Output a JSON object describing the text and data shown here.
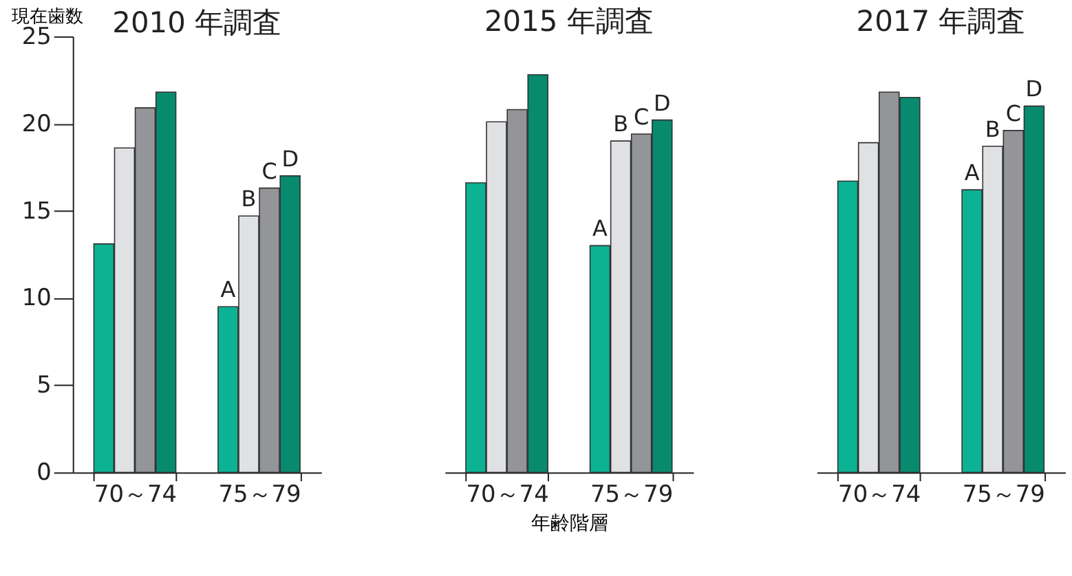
{
  "chart_data": [
    {
      "type": "bar",
      "title": "2010 年調査",
      "ylabel": "現在歯数",
      "categories": [
        "70～74",
        "75～79"
      ],
      "ylim": [
        0,
        25
      ],
      "yticks": [
        0,
        5,
        10,
        15,
        20,
        25
      ],
      "legend": false,
      "grid": false,
      "series": [
        {
          "name": "A",
          "color": "#0bb394",
          "values": [
            13.1,
            9.5
          ]
        },
        {
          "name": "B",
          "color": "#e0e1e3",
          "values": [
            18.6,
            14.7
          ]
        },
        {
          "name": "C",
          "color": "#939598",
          "values": [
            20.9,
            16.3
          ]
        },
        {
          "name": "D",
          "color": "#078a6e",
          "values": [
            21.8,
            17.0
          ]
        }
      ]
    },
    {
      "type": "bar",
      "title": "2015 年調査",
      "xlabel": "年齢階層",
      "categories": [
        "70～74",
        "75～79"
      ],
      "ylim": [
        0,
        25
      ],
      "tick_labels": "x",
      "legend": false,
      "grid": false,
      "series": [
        {
          "name": "A",
          "color": "#0bb394",
          "values": [
            16.6,
            13.0
          ]
        },
        {
          "name": "B",
          "color": "#e0e1e3",
          "values": [
            20.1,
            19.0
          ]
        },
        {
          "name": "C",
          "color": "#939598",
          "values": [
            20.8,
            19.4
          ]
        },
        {
          "name": "D",
          "color": "#078a6e",
          "values": [
            22.8,
            20.2
          ]
        }
      ]
    },
    {
      "type": "bar",
      "title": "2017 年調査",
      "categories": [
        "70～74",
        "75～79"
      ],
      "ylim": [
        0,
        25
      ],
      "tick_labels": "x",
      "legend": false,
      "grid": false,
      "series": [
        {
          "name": "A",
          "color": "#0bb394",
          "values": [
            16.7,
            16.2
          ]
        },
        {
          "name": "B",
          "color": "#e0e1e3",
          "values": [
            18.9,
            18.7
          ]
        },
        {
          "name": "C",
          "color": "#939598",
          "values": [
            21.8,
            19.6
          ]
        },
        {
          "name": "D",
          "color": "#078a6e",
          "values": [
            21.5,
            21.0
          ]
        }
      ]
    }
  ]
}
